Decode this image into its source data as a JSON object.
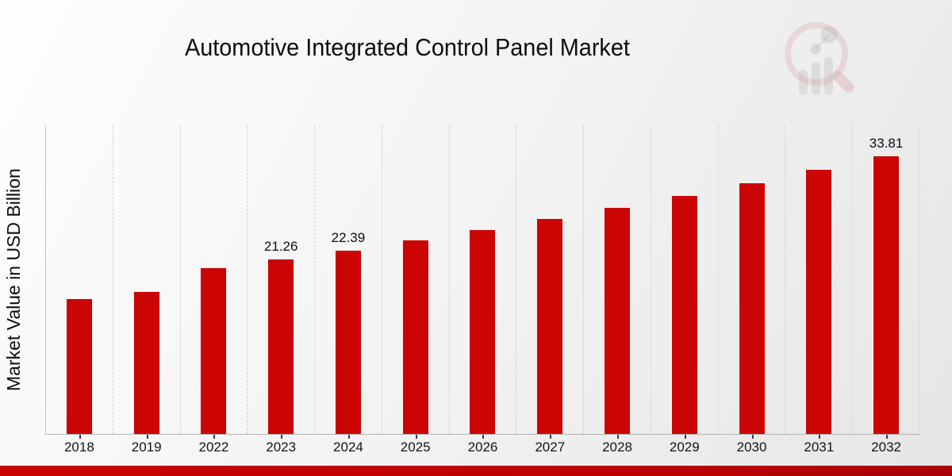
{
  "page": {
    "kind": "market research infographic",
    "background": "light gray diagonal gradient"
  },
  "colors": {
    "bar": "#cb0404",
    "footer_band": "#c00303",
    "gridline": "#d1d1d1",
    "axis": "#b3b3b3",
    "text": "#111111"
  },
  "logo": {
    "name": "market-research-future-watermark",
    "description": "magnifying glass containing ascending bar chart with trend dots"
  },
  "chart_data": {
    "type": "bar",
    "title": "Automotive Integrated Control Panel Market",
    "xlabel": "",
    "ylabel": "Market Value in USD Billion",
    "categories": [
      "2018",
      "2019",
      "2022",
      "2023",
      "2024",
      "2025",
      "2026",
      "2027",
      "2028",
      "2029",
      "2030",
      "2031",
      "2032"
    ],
    "values": [
      16.5,
      17.4,
      20.2,
      21.26,
      22.39,
      23.6,
      24.9,
      26.2,
      27.6,
      29.0,
      30.6,
      32.2,
      33.81
    ],
    "value_labels_shown": [
      "",
      "",
      "",
      "21.26",
      "22.39",
      "",
      "",
      "",
      "",
      "",
      "",
      "",
      "33.81"
    ],
    "ylim": [
      0,
      37.5
    ],
    "y_axis_ticks": "none",
    "gridlines": "vertical dashed between categories",
    "legend_position": "none",
    "bar_color": "#cb0404",
    "units": "USD Billion"
  }
}
